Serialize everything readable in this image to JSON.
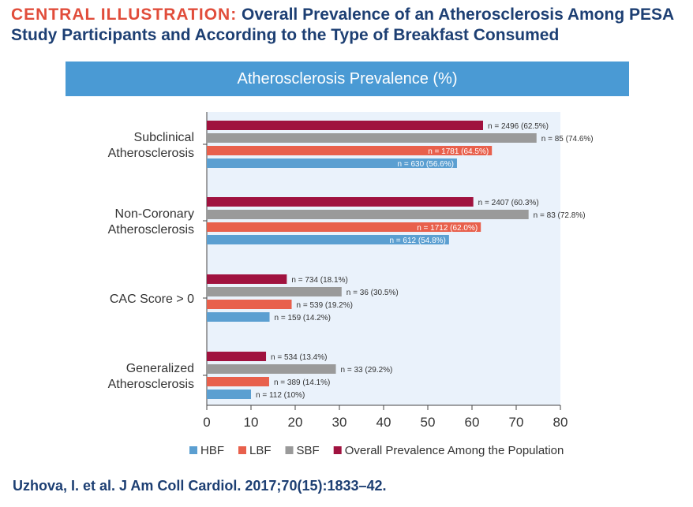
{
  "header": {
    "title_lead": "CENTRAL ILLUSTRATION:",
    "title_rest": "Overall Prevalence of an Atherosclerosis Among PESA Study Participants and According to the Type of Breakfast Consumed"
  },
  "colors": {
    "hbf": "#5b9fd1",
    "lbf": "#e8604c",
    "sbf": "#9a9a9a",
    "overall": "#a0123f",
    "plot_bg": "#eaf2fb",
    "banner": "#4a9ad4",
    "title_accent": "#e14d3b",
    "title_text": "#1d3f73"
  },
  "chart_data": {
    "type": "bar",
    "orientation": "horizontal",
    "title": "Atherosclerosis Prevalence (%)",
    "xlabel": "",
    "ylabel": "",
    "xlim": [
      0,
      80
    ],
    "xticks": [
      "0",
      "10",
      "20",
      "30",
      "40",
      "50",
      "60",
      "70",
      "80"
    ],
    "categories": [
      [
        "Subclinical",
        "Atherosclerosis"
      ],
      [
        "Non-Coronary",
        "Atherosclerosis"
      ],
      [
        "CAC Score > 0"
      ],
      [
        "Generalized",
        "Atherosclerosis"
      ]
    ],
    "series": [
      {
        "key": "overall",
        "name": "Overall Prevalence Among the Population",
        "values": [
          62.5,
          60.3,
          18.1,
          13.4
        ],
        "labels": [
          "n = 2496 (62.5%)",
          "n = 2407 (60.3%)",
          "n = 734 (18.1%)",
          "n = 534 (13.4%)"
        ]
      },
      {
        "key": "sbf",
        "name": "SBF",
        "values": [
          74.6,
          72.8,
          30.5,
          29.2
        ],
        "labels": [
          "n = 85 (74.6%)",
          "n = 83 (72.8%)",
          "n = 36 (30.5%)",
          "n = 33 (29.2%)"
        ]
      },
      {
        "key": "lbf",
        "name": "LBF",
        "values": [
          64.5,
          62.0,
          19.2,
          14.1
        ],
        "labels": [
          "n = 1781 (64.5%)",
          "n = 1712 (62.0%)",
          "n = 539 (19.2%)",
          "n = 389 (14.1%)"
        ]
      },
      {
        "key": "hbf",
        "name": "HBF",
        "values": [
          56.6,
          54.8,
          14.2,
          10.0
        ],
        "labels": [
          "n = 630 (56.6%)",
          "n = 612 (54.8%)",
          "n = 159 (14.2%)",
          "n = 112 (10%)"
        ]
      }
    ],
    "legend": [
      {
        "key": "hbf",
        "label": "HBF"
      },
      {
        "key": "lbf",
        "label": "LBF"
      },
      {
        "key": "sbf",
        "label": "SBF"
      },
      {
        "key": "overall",
        "label": "Overall Prevalence Among the Population"
      }
    ],
    "legend_position": "bottom"
  },
  "citation": "Uzhova, I. et al. J Am Coll Cardiol. 2017;70(15):1833–42."
}
